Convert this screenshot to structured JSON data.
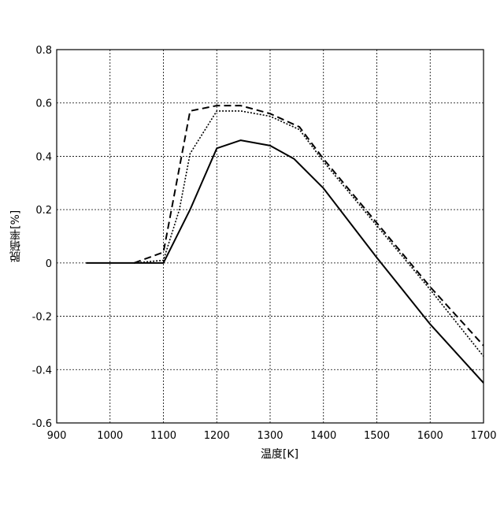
{
  "chart_data": {
    "type": "line",
    "xlabel": "温度[K]",
    "ylabel": "脱硝率[%]",
    "xlim": [
      900,
      1700
    ],
    "ylim": [
      -0.6,
      0.8
    ],
    "xticks": [
      900,
      1000,
      1100,
      1200,
      1300,
      1400,
      1500,
      1600,
      1700
    ],
    "yticks": [
      0.8,
      0.6,
      0.4,
      0.2,
      0,
      -0.2,
      -0.4,
      -0.6
    ],
    "xtick_labels": [
      "900",
      "1000",
      "1100",
      "1200",
      "1300",
      "1400",
      "1500",
      "1600",
      "1700"
    ],
    "ytick_labels": [
      "0.8",
      "0.6",
      "0.4",
      "0.2",
      "0",
      "-0.2",
      "-0.4",
      "-0.6"
    ],
    "grid": true,
    "series": [
      {
        "style": "solid",
        "x": [
          955,
          1050,
          1100,
          1150,
          1200,
          1245,
          1300,
          1345,
          1400,
          1500,
          1600,
          1700
        ],
        "y": [
          0,
          0,
          0,
          0.2,
          0.43,
          0.46,
          0.44,
          0.39,
          0.28,
          0.02,
          -0.23,
          -0.45
        ]
      },
      {
        "style": "dashed",
        "x": [
          1045,
          1100,
          1150,
          1200,
          1245,
          1300,
          1355,
          1400,
          1500,
          1600,
          1700
        ],
        "y": [
          0,
          0.04,
          0.57,
          0.59,
          0.59,
          0.56,
          0.51,
          0.39,
          0.15,
          -0.09,
          -0.31
        ]
      },
      {
        "style": "dotted",
        "x": [
          1045,
          1100,
          1130,
          1150,
          1200,
          1245,
          1300,
          1355,
          1400,
          1500,
          1600,
          1700
        ],
        "y": [
          0,
          0.01,
          0.2,
          0.41,
          0.57,
          0.57,
          0.55,
          0.5,
          0.38,
          0.14,
          -0.1,
          -0.35
        ]
      }
    ]
  }
}
